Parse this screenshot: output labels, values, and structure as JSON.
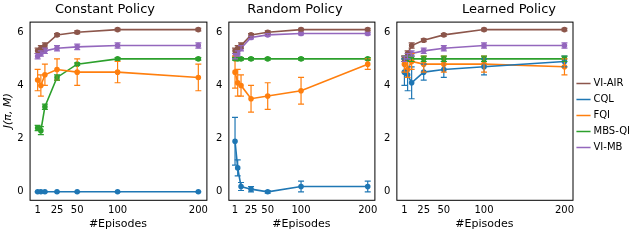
{
  "chart_data": [
    {
      "type": "line",
      "title": "Constant Policy",
      "x_label": "#Episodes",
      "y_label": "J(π, M)",
      "x": [
        1,
        5,
        10,
        25,
        50,
        100,
        200
      ],
      "xlim": [
        -9,
        210
      ],
      "xticks": [
        1,
        25,
        50,
        100,
        200
      ],
      "ylim": [
        -0.3,
        6.4
      ],
      "yticks": [
        0,
        2,
        4,
        6
      ],
      "grid": false,
      "marker": "o",
      "series": [
        {
          "name": "VI-AIR",
          "color": "#8c564b",
          "values": [
            5.3,
            5.4,
            5.5,
            5.9,
            6.0,
            6.1,
            6.1
          ],
          "errors": [
            0.1,
            0.1,
            0.1,
            0.05,
            0.05,
            0.05,
            0.05
          ]
        },
        {
          "name": "CQL",
          "color": "#1f77b4",
          "values": [
            0,
            0,
            0,
            0,
            0,
            0,
            0
          ],
          "errors": [
            0,
            0,
            0,
            0,
            0,
            0,
            0
          ]
        },
        {
          "name": "FQI",
          "color": "#ff7f0e",
          "values": [
            4.2,
            4.0,
            4.4,
            4.6,
            4.5,
            4.5,
            4.3
          ],
          "errors": [
            0.4,
            0.4,
            0.4,
            0.4,
            0.5,
            0.4,
            0.5
          ]
        },
        {
          "name": "MBS-QI",
          "color": "#2ca02c",
          "values": [
            2.4,
            2.3,
            3.2,
            4.3,
            4.8,
            5.0,
            5.0
          ],
          "errors": [
            0.1,
            0.15,
            0.1,
            0.1,
            0.05,
            0.05,
            0.05
          ]
        },
        {
          "name": "VI-MB",
          "color": "#9467bd",
          "values": [
            5.1,
            5.2,
            5.3,
            5.4,
            5.45,
            5.5,
            5.5
          ],
          "errors": [
            0.1,
            0.1,
            0.1,
            0.1,
            0.1,
            0.1,
            0.1
          ]
        }
      ]
    },
    {
      "type": "line",
      "title": "Random Policy",
      "x_label": "#Episodes",
      "x": [
        1,
        5,
        10,
        25,
        50,
        100,
        200
      ],
      "xlim": [
        -9,
        210
      ],
      "xticks": [
        1,
        25,
        50,
        100,
        200
      ],
      "ylim": [
        -0.3,
        6.4
      ],
      "yticks": [
        0,
        2,
        4,
        6
      ],
      "grid": false,
      "marker": "o",
      "series": [
        {
          "name": "VI-AIR",
          "color": "#8c564b",
          "values": [
            5.3,
            5.4,
            5.5,
            5.9,
            6.0,
            6.1,
            6.1
          ],
          "errors": [
            0.1,
            0.1,
            0.1,
            0.05,
            0.05,
            0.05,
            0.05
          ]
        },
        {
          "name": "CQL",
          "color": "#1f77b4",
          "values": [
            1.9,
            0.9,
            0.2,
            0.1,
            0.0,
            0.2,
            0.2
          ],
          "errors": [
            0.9,
            0.3,
            0.15,
            0.1,
            0.05,
            0.2,
            0.2
          ]
        },
        {
          "name": "FQI",
          "color": "#ff7f0e",
          "values": [
            4.5,
            4.1,
            4.0,
            3.5,
            3.6,
            3.8,
            4.8
          ],
          "errors": [
            0.6,
            0.5,
            0.4,
            0.5,
            0.5,
            0.5,
            0.2
          ]
        },
        {
          "name": "MBS-QI",
          "color": "#2ca02c",
          "values": [
            5.0,
            5.0,
            5.0,
            5.0,
            5.0,
            5.0,
            5.0
          ],
          "errors": [
            0.05,
            0.05,
            0.05,
            0.05,
            0.05,
            0.05,
            0.05
          ]
        },
        {
          "name": "VI-MB",
          "color": "#9467bd",
          "values": [
            5.1,
            5.2,
            5.4,
            5.8,
            5.9,
            5.95,
            5.95
          ],
          "errors": [
            0.1,
            0.1,
            0.1,
            0.05,
            0.05,
            0.05,
            0.05
          ]
        }
      ]
    },
    {
      "type": "line",
      "title": "Learned Policy",
      "x_label": "#Episodes",
      "x": [
        1,
        5,
        10,
        25,
        50,
        100,
        200
      ],
      "xlim": [
        -9,
        210
      ],
      "xticks": [
        1,
        25,
        50,
        100,
        200
      ],
      "ylim": [
        -0.3,
        6.4
      ],
      "yticks": [
        0,
        2,
        4,
        6
      ],
      "grid": false,
      "marker": "o",
      "legend": "right",
      "series": [
        {
          "name": "VI-AIR",
          "color": "#8c564b",
          "values": [
            5.0,
            5.2,
            5.5,
            5.7,
            5.9,
            6.1,
            6.1
          ],
          "errors": [
            0.1,
            0.1,
            0.1,
            0.05,
            0.05,
            0.05,
            0.05
          ]
        },
        {
          "name": "CQL",
          "color": "#1f77b4",
          "values": [
            4.5,
            4.4,
            4.1,
            4.5,
            4.6,
            4.7,
            4.9
          ],
          "errors": [
            0.5,
            0.6,
            0.6,
            0.3,
            0.3,
            0.3,
            0.2
          ]
        },
        {
          "name": "FQI",
          "color": "#ff7f0e",
          "values": [
            4.8,
            4.6,
            4.9,
            4.8,
            4.8,
            4.8,
            4.7
          ],
          "errors": [
            0.3,
            0.3,
            0.3,
            0.3,
            0.3,
            0.3,
            0.3
          ]
        },
        {
          "name": "MBS-QI",
          "color": "#2ca02c",
          "values": [
            5.0,
            5.0,
            5.0,
            5.0,
            5.0,
            5.0,
            5.0
          ],
          "errors": [
            0.1,
            0.1,
            0.1,
            0.1,
            0.1,
            0.1,
            0.1
          ]
        },
        {
          "name": "VI-MB",
          "color": "#9467bd",
          "values": [
            5.0,
            5.1,
            5.2,
            5.3,
            5.4,
            5.5,
            5.5
          ],
          "errors": [
            0.1,
            0.1,
            0.1,
            0.1,
            0.1,
            0.1,
            0.1
          ]
        }
      ]
    }
  ]
}
